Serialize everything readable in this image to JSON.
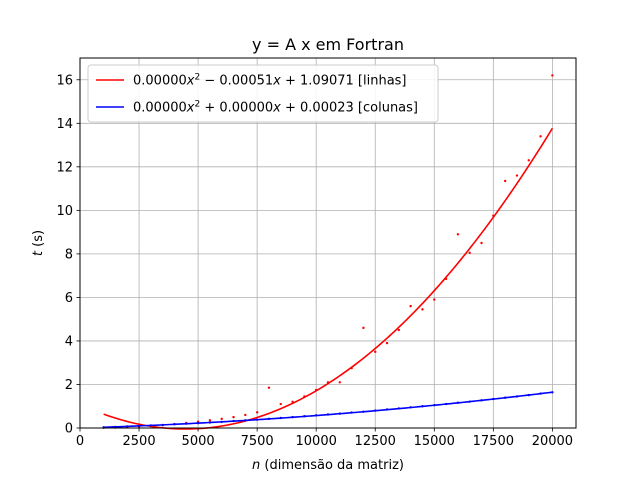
{
  "chart_data": {
    "type": "scatter",
    "title": "y = A x em Fortran",
    "xlabel": "n (dimensão da matriz)",
    "xlabel_var": "n",
    "xlabel_rest": " (dimensão da matriz)",
    "ylabel": "t (s)",
    "ylabel_var": "t",
    "ylabel_rest": " (s)",
    "xlim": [
      0,
      21000
    ],
    "ylim": [
      0,
      17
    ],
    "x_ticks": [
      0,
      2500,
      5000,
      7500,
      10000,
      12500,
      15000,
      17500,
      20000
    ],
    "y_ticks": [
      0,
      2,
      4,
      6,
      8,
      10,
      12,
      14,
      16
    ],
    "grid": true,
    "legend_position": "top-left",
    "series": [
      {
        "name": "0.00000x² − 0.00051x + 1.09071 [linhas]",
        "legend_coefs": [
          "0.00000",
          "0.00051",
          "1.09071"
        ],
        "legend_signs": [
          "−",
          "+"
        ],
        "legend_suffix": "[linhas]",
        "color": "#ff0000",
        "fit": {
          "a": 5.72e-08,
          "b": -0.00051,
          "c": 1.09071,
          "x_range": [
            1000,
            20000
          ]
        },
        "x": [
          1000,
          1500,
          2000,
          2500,
          3000,
          3500,
          4000,
          4500,
          5000,
          5500,
          6000,
          6500,
          7000,
          7500,
          8000,
          8500,
          9000,
          9500,
          10000,
          10500,
          11000,
          11500,
          12000,
          12500,
          13000,
          13500,
          14000,
          14500,
          15000,
          15500,
          16000,
          16500,
          17000,
          17500,
          18000,
          18500,
          19000,
          19500,
          20000
        ],
        "y": [
          0.01,
          0.02,
          0.04,
          0.06,
          0.09,
          0.13,
          0.18,
          0.23,
          0.29,
          0.35,
          0.42,
          0.5,
          0.6,
          0.72,
          1.85,
          1.1,
          1.2,
          1.45,
          1.75,
          2.1,
          2.1,
          2.75,
          4.6,
          3.5,
          3.9,
          4.5,
          5.6,
          5.45,
          5.9,
          6.85,
          8.9,
          8.05,
          8.5,
          9.75,
          11.35,
          11.6,
          12.3,
          13.4,
          16.2
        ]
      },
      {
        "name": "0.00000x² + 0.00000x + 0.00023 [colunas]",
        "legend_coefs": [
          "0.00000",
          "0.00000",
          "0.00023"
        ],
        "legend_signs": [
          "+",
          "+"
        ],
        "legend_suffix": "[colunas]",
        "color": "#0000ff",
        "fit": {
          "a": 2.5e-09,
          "b": 3.22e-05,
          "c": 0.00023,
          "x_range": [
            1000,
            20000
          ]
        },
        "x": [
          1000,
          1500,
          2000,
          2500,
          3000,
          3500,
          4000,
          4500,
          5000,
          5500,
          6000,
          6500,
          7000,
          7500,
          8000,
          8500,
          9000,
          9500,
          10000,
          10500,
          11000,
          11500,
          12000,
          12500,
          13000,
          13500,
          14000,
          14500,
          15000,
          15500,
          16000,
          16500,
          17000,
          17500,
          18000,
          18500,
          19000,
          19500,
          20000
        ],
        "y": [
          0.03,
          0.05,
          0.07,
          0.09,
          0.12,
          0.14,
          0.17,
          0.2,
          0.22,
          0.25,
          0.28,
          0.32,
          0.35,
          0.38,
          0.42,
          0.46,
          0.5,
          0.54,
          0.58,
          0.62,
          0.66,
          0.71,
          0.75,
          0.8,
          0.85,
          0.9,
          0.95,
          1.0,
          1.05,
          1.1,
          1.16,
          1.21,
          1.27,
          1.33,
          1.39,
          1.45,
          1.51,
          1.58,
          1.64
        ]
      }
    ]
  }
}
